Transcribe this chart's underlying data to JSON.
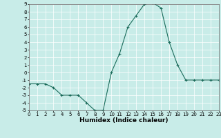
{
  "x": [
    0,
    1,
    2,
    3,
    4,
    5,
    6,
    7,
    8,
    9,
    10,
    11,
    12,
    13,
    14,
    15,
    16,
    17,
    18,
    19,
    20,
    21,
    22,
    23
  ],
  "y": [
    -1.5,
    -1.5,
    -1.5,
    -2,
    -3,
    -3,
    -3,
    -4,
    -5,
    -5,
    0,
    2.5,
    6,
    7.5,
    9,
    9.2,
    8.5,
    4,
    1,
    -1,
    -1,
    -1,
    -1,
    -1
  ],
  "line_color": "#1a6b5a",
  "marker_color": "#1a6b5a",
  "bg_color": "#c8ece8",
  "grid_color": "#ffffff",
  "xlabel": "Humidex (Indice chaleur)",
  "ylim": [
    -5,
    9
  ],
  "xlim": [
    0,
    23
  ],
  "yticks": [
    -5,
    -4,
    -3,
    -2,
    -1,
    0,
    1,
    2,
    3,
    4,
    5,
    6,
    7,
    8,
    9
  ],
  "xticks": [
    0,
    1,
    2,
    3,
    4,
    5,
    6,
    7,
    8,
    9,
    10,
    11,
    12,
    13,
    14,
    15,
    16,
    17,
    18,
    19,
    20,
    21,
    22,
    23
  ],
  "tick_fontsize": 5,
  "xlabel_fontsize": 6.5,
  "marker_size": 3,
  "line_width": 0.8
}
